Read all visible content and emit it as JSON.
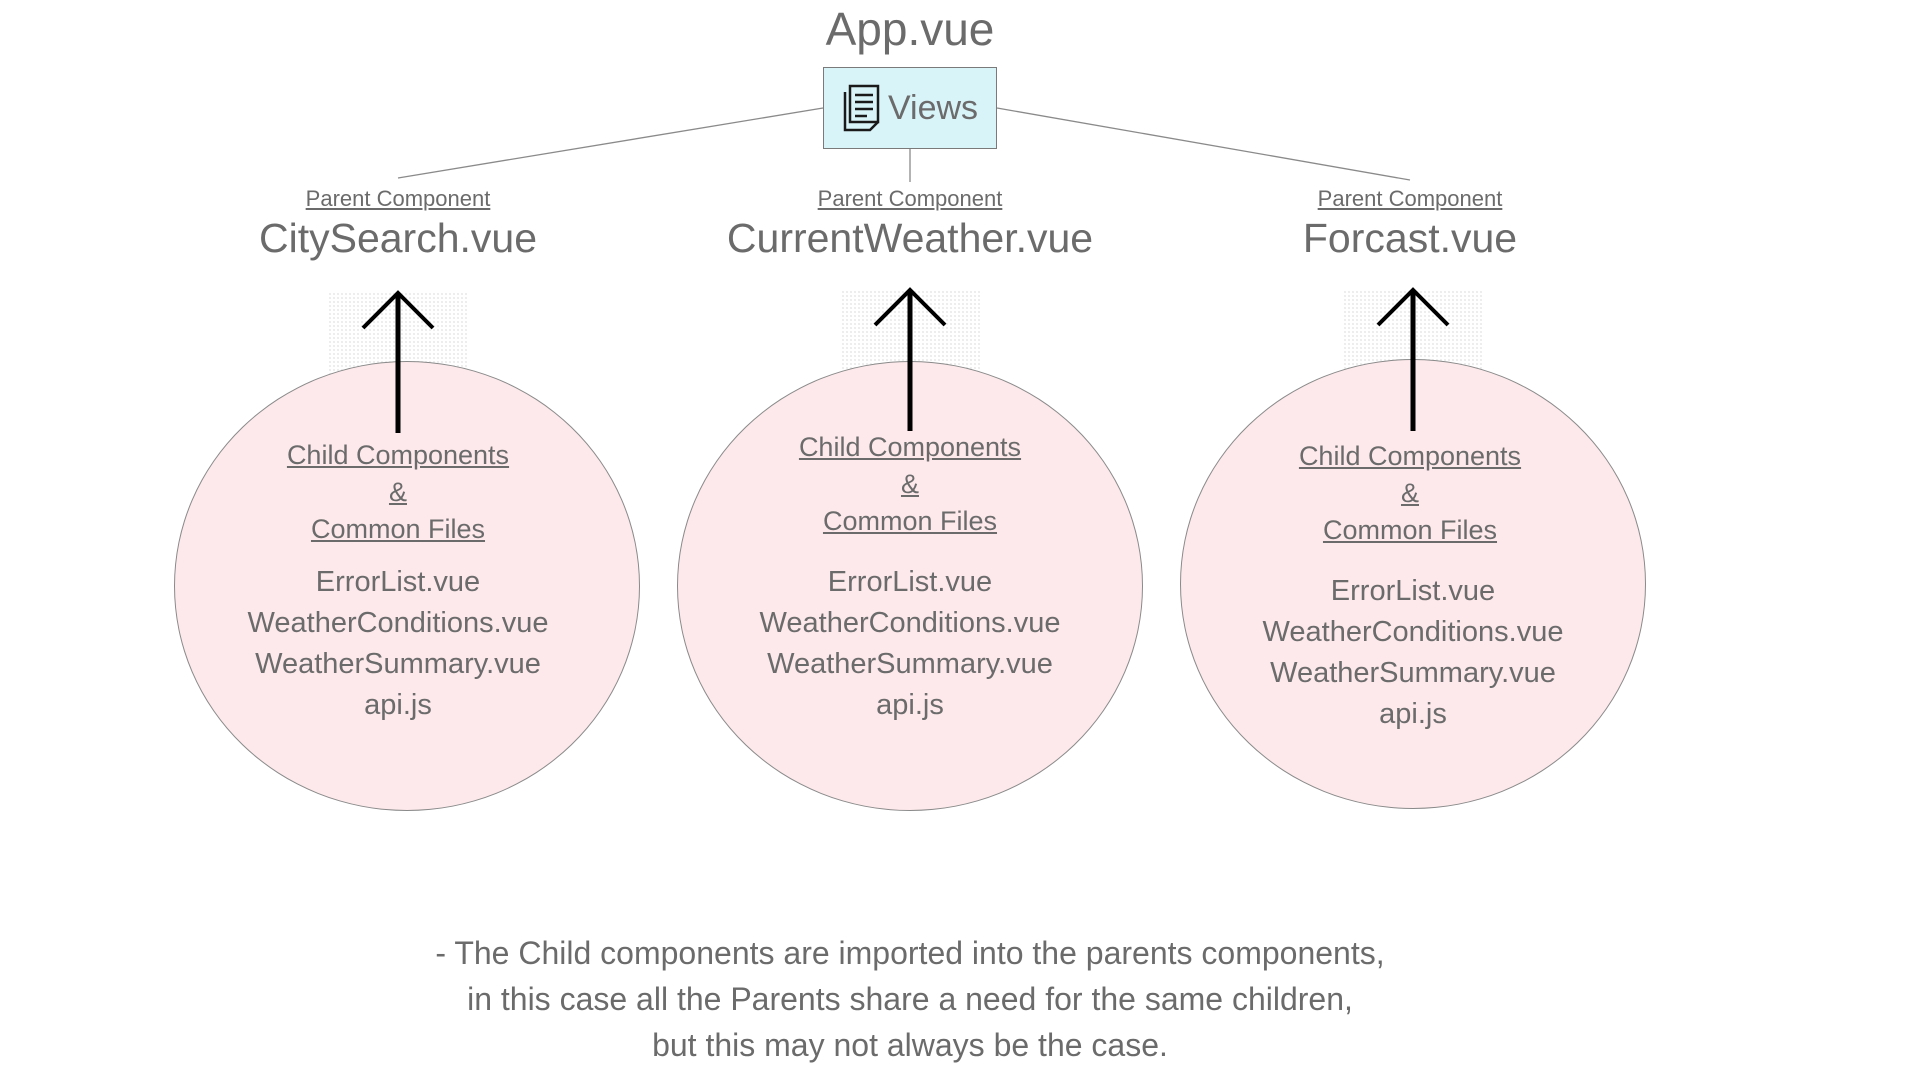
{
  "root": {
    "title": "App.vue",
    "views_label": "Views",
    "views_icon": "document-icon"
  },
  "parents": [
    {
      "caption": "Parent Component",
      "name": "CitySearch.vue",
      "child_header": [
        "Child Components",
        "&",
        "Common Files"
      ],
      "files": [
        "ErrorList.vue",
        "WeatherConditions.vue",
        "WeatherSummary.vue",
        "api.js"
      ]
    },
    {
      "caption": "Parent Component",
      "name": "CurrentWeather.vue",
      "child_header": [
        "Child Components",
        "&",
        "Common Files"
      ],
      "files": [
        "ErrorList.vue",
        "WeatherConditions.vue",
        "WeatherSummary.vue",
        "api.js"
      ]
    },
    {
      "caption": "Parent Component",
      "name": "Forcast.vue",
      "child_header": [
        "Child Components",
        "&",
        "Common Files"
      ],
      "files": [
        "ErrorList.vue",
        "WeatherConditions.vue",
        "WeatherSummary.vue",
        "api.js"
      ]
    }
  ],
  "note": [
    "- The Child components are imported into the parents components,",
    "in this case all the Parents share a need for the same children,",
    "but this may not always be the case."
  ],
  "colors": {
    "text": "#6b6b6b",
    "views_fill": "#d8f4f8",
    "circle_fill": "#fde9eb",
    "line": "#8a8a8a",
    "arrow": "#000000"
  }
}
